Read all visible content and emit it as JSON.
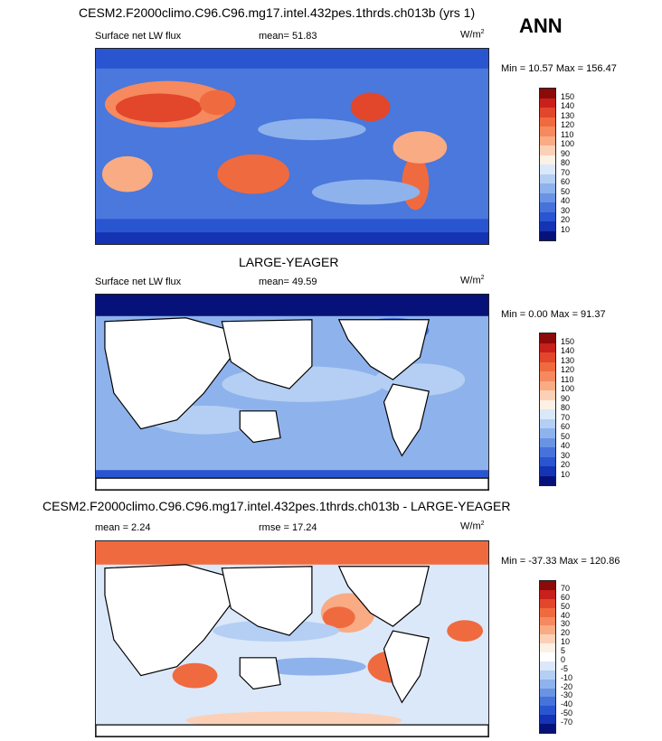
{
  "season": "ANN",
  "panels": [
    {
      "title": "CESM2.F2000climo.C96.C96.mg17.intel.432pes.1thrds.ch013b (yrs 1)",
      "left_label": "Surface net LW flux",
      "center_label": "mean=  51.83",
      "units": "W/m",
      "units_sup": "2",
      "minmax": "Min = 10.57 Max = 156.47",
      "colorbar_labels": [
        "150",
        "140",
        "130",
        "120",
        "110",
        "100",
        "90",
        "80",
        "70",
        "60",
        "50",
        "40",
        "30",
        "20",
        "10"
      ],
      "colorbar_colors": [
        "#8b0a0a",
        "#c8201a",
        "#e2462b",
        "#f06a3f",
        "#f6895e",
        "#f9ab84",
        "#fcd0b6",
        "#fdf0e5",
        "#dbe8f9",
        "#b4cff3",
        "#8eb2ec",
        "#6a93e3",
        "#4672da",
        "#2a55d1",
        "#1434b4",
        "#06127a"
      ]
    },
    {
      "title": "LARGE-YEAGER",
      "left_label": "Surface net LW flux",
      "center_label": "mean=  49.59",
      "units": "W/m",
      "units_sup": "2",
      "minmax": "Min =  0.00 Max =  91.37",
      "colorbar_labels": [
        "150",
        "140",
        "130",
        "120",
        "110",
        "100",
        "90",
        "80",
        "70",
        "60",
        "50",
        "40",
        "30",
        "20",
        "10"
      ],
      "colorbar_colors": [
        "#8b0a0a",
        "#c8201a",
        "#e2462b",
        "#f06a3f",
        "#f6895e",
        "#f9ab84",
        "#fcd0b6",
        "#fdf0e5",
        "#dbe8f9",
        "#b4cff3",
        "#8eb2ec",
        "#6a93e3",
        "#4672da",
        "#2a55d1",
        "#1434b4",
        "#06127a"
      ]
    },
    {
      "title": "CESM2.F2000climo.C96.C96.mg17.intel.432pes.1thrds.ch013b - LARGE-YEAGER",
      "left_label": "mean =   2.24",
      "center_label": "rmse =  17.24",
      "units": "W/m",
      "units_sup": "2",
      "minmax": "Min = -37.33 Max = 120.86",
      "colorbar_labels": [
        "70",
        "60",
        "50",
        "40",
        "30",
        "20",
        "10",
        "5",
        "0",
        "-5",
        "-10",
        "-20",
        "-30",
        "-40",
        "-50",
        "-70"
      ],
      "colorbar_colors": [
        "#8b0a0a",
        "#c8201a",
        "#e2462b",
        "#f06a3f",
        "#f6895e",
        "#f9ab84",
        "#fcd0b6",
        "#fdf0e5",
        "#ffffff",
        "#dbe8f9",
        "#b4cff3",
        "#8eb2ec",
        "#6a93e3",
        "#4672da",
        "#2a55d1",
        "#1434b4",
        "#06127a"
      ]
    }
  ]
}
